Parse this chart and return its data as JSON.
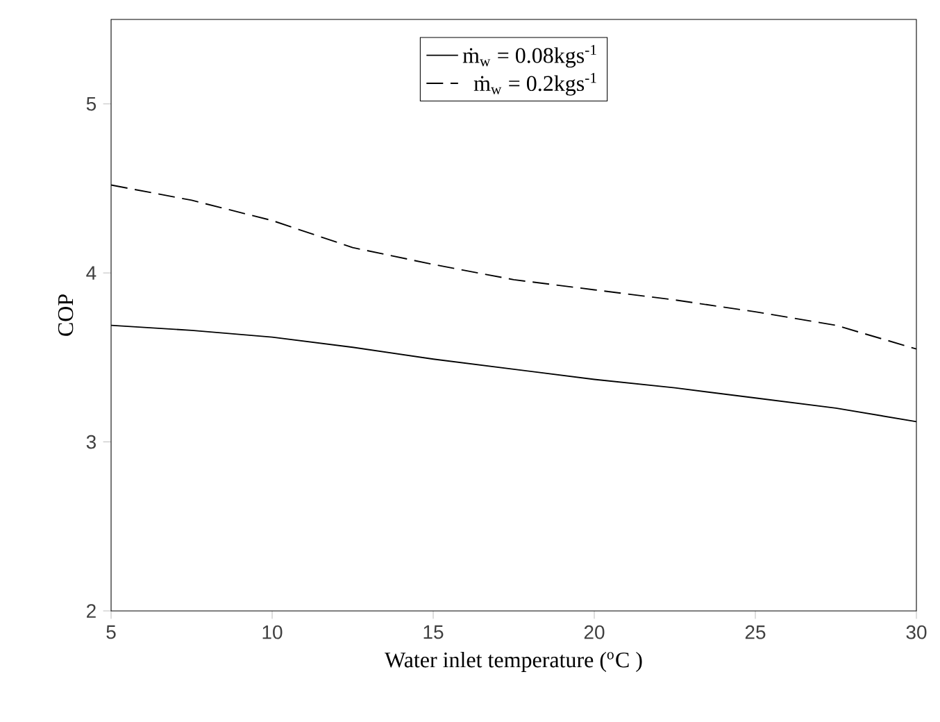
{
  "chart_data": {
    "type": "line",
    "xlabel": "Water inlet temperature ($^{o}$C )",
    "ylabel": "COP",
    "x": [
      5,
      7.5,
      10,
      12.5,
      15,
      17.5,
      20,
      22.5,
      25,
      27.5,
      30
    ],
    "series": [
      {
        "name": "ṁ$_{w}$ = 0.08kgs$^{-1}$",
        "color": "#000000",
        "line_style": "solid",
        "values": [
          3.69,
          3.66,
          3.62,
          3.56,
          3.49,
          3.43,
          3.37,
          3.32,
          3.26,
          3.2,
          3.12
        ]
      },
      {
        "name": "ṁ$_{w}$ = 0.2kgs$^{-1}$",
        "color": "#000000",
        "line_style": "dashed",
        "values": [
          4.52,
          4.43,
          4.31,
          4.15,
          4.05,
          3.96,
          3.9,
          3.84,
          3.77,
          3.69,
          3.55
        ]
      }
    ],
    "xlim": [
      5,
      30
    ],
    "xticks": [
      5,
      10,
      15,
      20,
      25,
      30
    ],
    "ylim": [
      2,
      5.5
    ],
    "yticks": [
      2,
      3,
      4,
      5
    ],
    "legend": "top",
    "grid": false,
    "marker": "none"
  }
}
